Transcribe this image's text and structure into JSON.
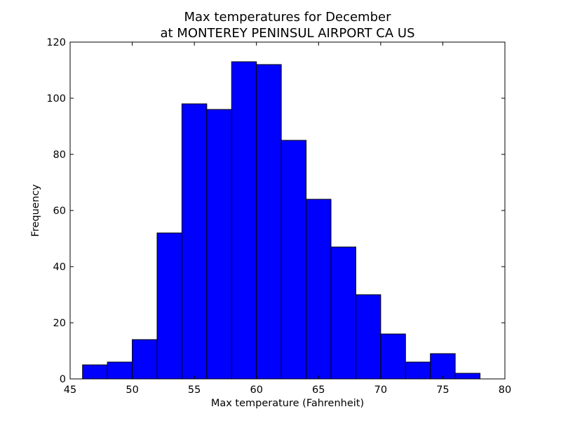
{
  "chart_data": {
    "type": "bar",
    "title": [
      "Max temperatures for December",
      "at MONTEREY PENINSUL AIRPORT CA US"
    ],
    "xlabel": "Max temperature (Fahrenheit)",
    "ylabel": "Frequency",
    "xlim": [
      45,
      80
    ],
    "ylim": [
      0,
      120
    ],
    "xticks": [
      45,
      50,
      55,
      60,
      65,
      70,
      75,
      80
    ],
    "yticks": [
      0,
      20,
      40,
      60,
      80,
      100,
      120
    ],
    "bar_color": "#0000ff",
    "bins": [
      {
        "x0": 46,
        "x1": 48,
        "value": 5
      },
      {
        "x0": 48,
        "x1": 50,
        "value": 6
      },
      {
        "x0": 50,
        "x1": 52,
        "value": 14
      },
      {
        "x0": 52,
        "x1": 54,
        "value": 52
      },
      {
        "x0": 54,
        "x1": 56,
        "value": 98
      },
      {
        "x0": 56,
        "x1": 58,
        "value": 96
      },
      {
        "x0": 58,
        "x1": 60,
        "value": 113
      },
      {
        "x0": 60,
        "x1": 62,
        "value": 112
      },
      {
        "x0": 62,
        "x1": 64,
        "value": 85
      },
      {
        "x0": 64,
        "x1": 66,
        "value": 64
      },
      {
        "x0": 66,
        "x1": 68,
        "value": 47
      },
      {
        "x0": 68,
        "x1": 70,
        "value": 30
      },
      {
        "x0": 70,
        "x1": 72,
        "value": 16
      },
      {
        "x0": 72,
        "x1": 74,
        "value": 6
      },
      {
        "x0": 74,
        "x1": 76,
        "value": 9
      },
      {
        "x0": 76,
        "x1": 78,
        "value": 2
      }
    ],
    "grid": false,
    "legend": "none"
  }
}
